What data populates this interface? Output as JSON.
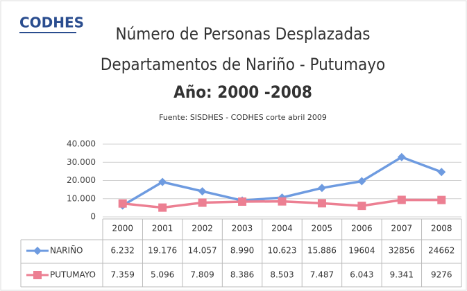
{
  "logo": "CODHES",
  "chart_data": {
    "type": "line",
    "title": [
      "Número de Personas Desplazadas",
      "Departamentos de Nariño - Putumayo",
      "Año: 2000 -2008"
    ],
    "subtitle": "Fuente: SISDHES - CODHES corte abril 2009",
    "categories": [
      "2000",
      "2001",
      "2002",
      "2003",
      "2004",
      "2005",
      "2006",
      "2007",
      "2008"
    ],
    "series": [
      {
        "name": "NARIÑO",
        "color": "#6e9be0",
        "marker": "diamond",
        "values": [
          6232,
          19176,
          14057,
          8990,
          10623,
          15886,
          19604,
          32856,
          24662
        ],
        "value_labels": [
          "6.232",
          "19.176",
          "14.057",
          "8.990",
          "10.623",
          "15.886",
          "19604",
          "32856",
          "24662"
        ]
      },
      {
        "name": "PUTUMAYO",
        "color": "#ec7f92",
        "marker": "square",
        "values": [
          7359,
          5096,
          7809,
          8386,
          8503,
          7487,
          6043,
          9341,
          9276
        ],
        "value_labels": [
          "7.359",
          "5.096",
          "7.809",
          "8.386",
          "8.503",
          "7.487",
          "6.043",
          "9.341",
          "9276"
        ]
      }
    ],
    "ylim": [
      0,
      40000
    ],
    "yticks": [
      0,
      {
        "value": 10000,
        "label": "10.000"
      },
      {
        "value": 20000,
        "label": "20.000"
      },
      {
        "value": 30000,
        "label": "30.000"
      },
      {
        "value": 40000,
        "label": "40.000"
      }
    ],
    "grid": true
  }
}
